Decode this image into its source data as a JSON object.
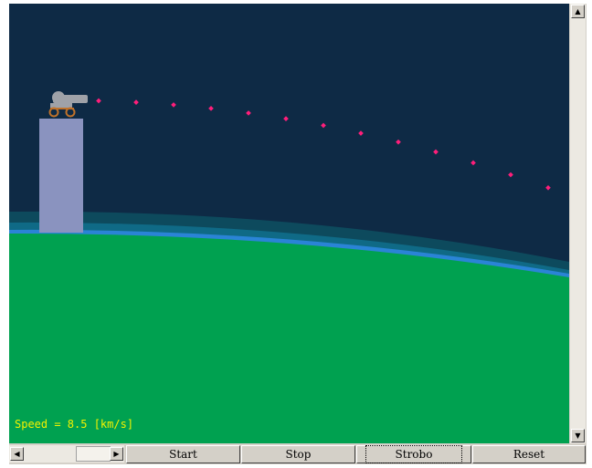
{
  "simulation": {
    "speed_text": "Speed = 8.5 [km/s]"
  },
  "colors": {
    "space": "#0e2a45",
    "ground": "#00a150",
    "atmosphere_outer": "#0d4a5d",
    "atmosphere_inner": "#0f6a86",
    "atmosphere_edge": "#2a84d6",
    "tower": "#8a93bf",
    "cannon": "#9fa2a8",
    "wheels": "#c0722a",
    "trajectory": "#ff1e7a",
    "readout": "#f2f200"
  },
  "icons": {
    "scroll_up": "triangle-up-icon",
    "scroll_down": "triangle-down-icon",
    "scroll_left": "triangle-left-icon",
    "scroll_right": "triangle-right-icon"
  },
  "glyphs": {
    "up": "▲",
    "down": "▼",
    "left": "◀",
    "right": "▶"
  },
  "buttons": {
    "start": "Start",
    "stop": "Stop",
    "strobo": "Strobo",
    "reset": "Reset"
  }
}
